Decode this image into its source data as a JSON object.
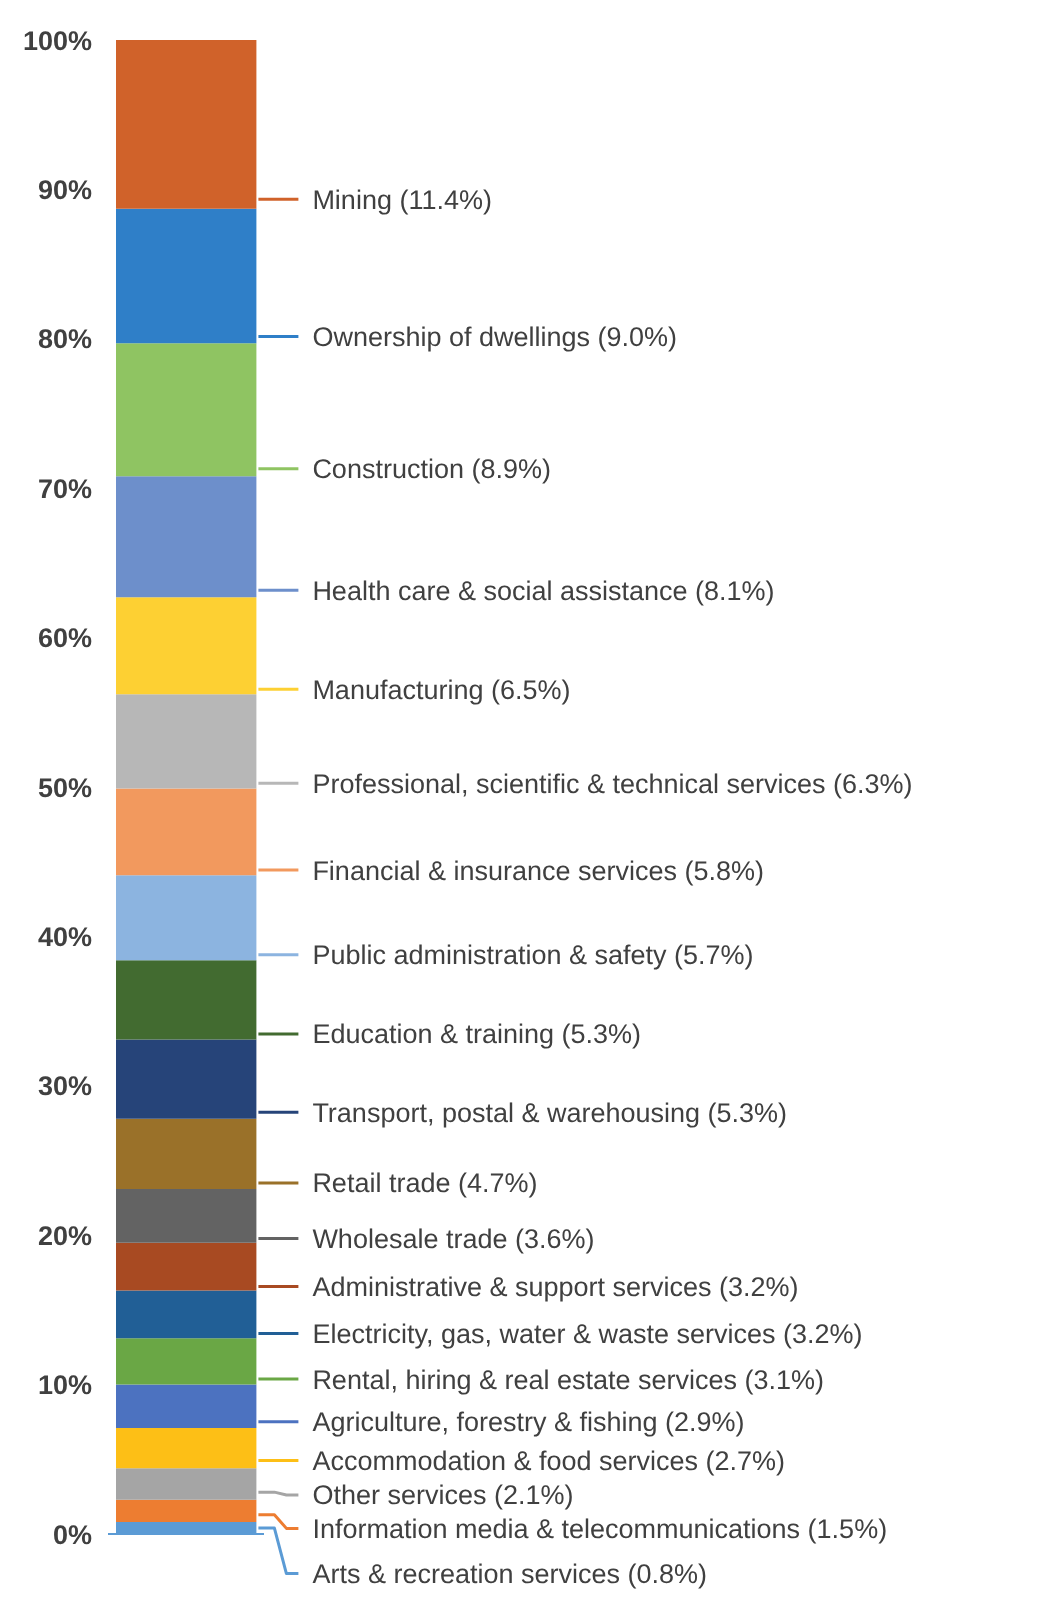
{
  "chart_data": {
    "type": "bar",
    "stacked": true,
    "categories": [
      null
    ],
    "tick_labels": "y",
    "ylim": [
      0,
      100
    ],
    "yticks": [
      {
        "value": 0,
        "label": "0%"
      },
      {
        "value": 10,
        "label": "10%"
      },
      {
        "value": 20,
        "label": "20%"
      },
      {
        "value": 30,
        "label": "30%"
      },
      {
        "value": 40,
        "label": "40%"
      },
      {
        "value": 50,
        "label": "50%"
      },
      {
        "value": 60,
        "label": "60%"
      },
      {
        "value": 70,
        "label": "70%"
      },
      {
        "value": 80,
        "label": "80%"
      },
      {
        "value": 90,
        "label": "90%"
      },
      {
        "value": 100,
        "label": "100%"
      }
    ],
    "series": [
      {
        "name": "Arts & recreation services",
        "color": "#5b9bd5",
        "values": [
          0.8
        ],
        "value_labels": [
          "(0.8%)"
        ]
      },
      {
        "name": "Information media & telecommunications",
        "color": "#ed7d31",
        "values": [
          1.5
        ],
        "value_labels": [
          "(1.5%)"
        ]
      },
      {
        "name": "Other services",
        "color": "#a5a5a5",
        "values": [
          2.1
        ],
        "value_labels": [
          "(2.1%)"
        ]
      },
      {
        "name": "Accommodation & food services",
        "color": "#fdbf16",
        "values": [
          2.7
        ],
        "value_labels": [
          "(2.7%)"
        ]
      },
      {
        "name": "Agriculture, forestry & fishing",
        "color": "#4c72c0",
        "values": [
          2.9
        ],
        "value_labels": [
          "(2.9%)"
        ]
      },
      {
        "name": "Rental, hiring & real estate services",
        "color": "#6aa745",
        "values": [
          3.1
        ],
        "value_labels": [
          "(3.1%)"
        ]
      },
      {
        "name": "Electricity, gas, water & waste services",
        "color": "#215f96",
        "values": [
          3.2
        ],
        "value_labels": [
          "(3.2%)"
        ]
      },
      {
        "name": "Administrative & support services",
        "color": "#a84a22",
        "values": [
          3.2
        ],
        "value_labels": [
          "(3.2%)"
        ]
      },
      {
        "name": "Wholesale trade",
        "color": "#636363",
        "values": [
          3.6
        ],
        "value_labels": [
          "(3.6%)"
        ]
      },
      {
        "name": "Retail trade",
        "color": "#9a7129",
        "values": [
          4.7
        ],
        "value_labels": [
          "(4.7%)"
        ]
      },
      {
        "name": "Transport, postal & warehousing",
        "color": "#264479",
        "values": [
          5.3
        ],
        "value_labels": [
          "(5.3%)"
        ]
      },
      {
        "name": "Education & training",
        "color": "#426b30",
        "values": [
          5.3
        ],
        "value_labels": [
          "(5.3%)"
        ]
      },
      {
        "name": "Public administration & safety",
        "color": "#8cb4e0",
        "values": [
          5.7
        ],
        "value_labels": [
          "(5.7%)"
        ]
      },
      {
        "name": "Financial & insurance services",
        "color": "#f2995e",
        "values": [
          5.8
        ],
        "value_labels": [
          "(5.8%)"
        ]
      },
      {
        "name": "Professional, scientific & technical services",
        "color": "#b7b7b7",
        "values": [
          6.3
        ],
        "value_labels": [
          "(6.3%)"
        ]
      },
      {
        "name": "Manufacturing",
        "color": "#fdd033",
        "values": [
          6.5
        ],
        "value_labels": [
          "(6.5%)"
        ]
      },
      {
        "name": "Health care & social assistance",
        "color": "#6d8fcb",
        "values": [
          8.1
        ],
        "value_labels": [
          "(8.1%)"
        ]
      },
      {
        "name": "Construction",
        "color": "#8fc462",
        "values": [
          8.9
        ],
        "value_labels": [
          "(8.9%)"
        ]
      },
      {
        "name": "Ownership of dwellings",
        "color": "#2f7fc8",
        "values": [
          9.0
        ],
        "value_labels": [
          "(9.0%)"
        ]
      },
      {
        "name": "Mining",
        "color": "#d0622a",
        "values": [
          11.4
        ],
        "value_labels": [
          "(11.4%)"
        ]
      }
    ]
  }
}
